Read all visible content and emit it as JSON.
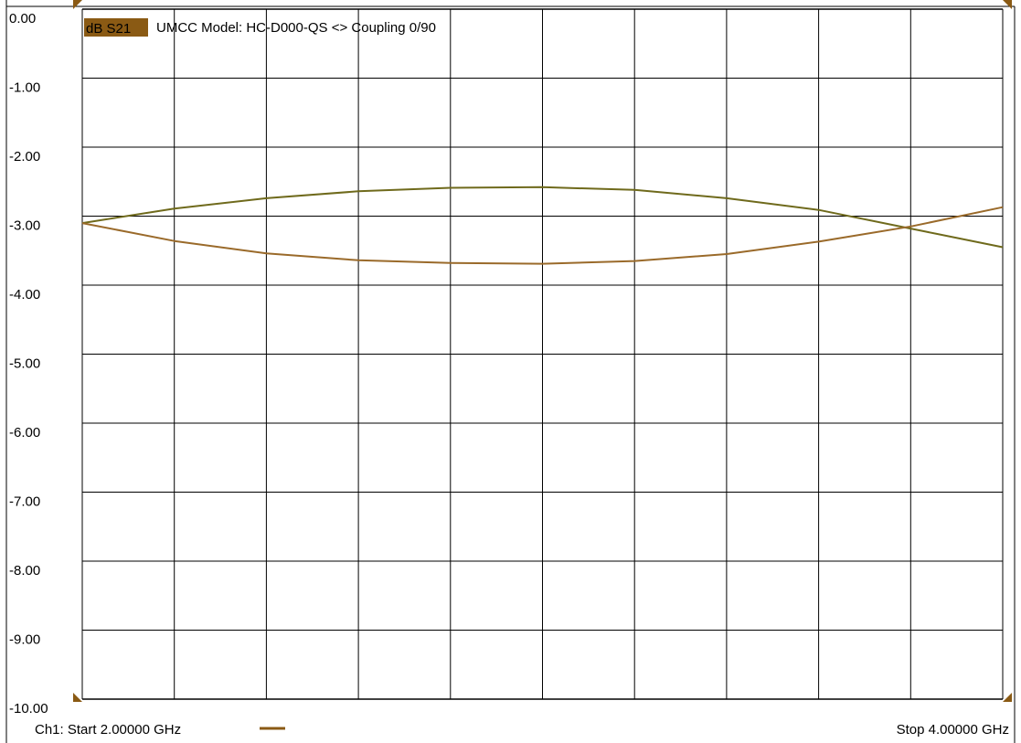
{
  "header": {
    "trace_label": "dB S21",
    "title": "UMCC Model: HC-D000-QS <> Coupling  0/90"
  },
  "footer": {
    "start_label": "Ch1: Start  2.00000 GHz",
    "stop_label": "Stop  4.00000 GHz"
  },
  "colors": {
    "background": "#ffffff",
    "grid": "#000000",
    "trace_label_bg": "#8a5a14",
    "series_1": "#6f6a1c",
    "series_2": "#9a6a2a",
    "marker": "#8a5a14"
  },
  "chart_data": {
    "type": "line",
    "x_unit": "GHz",
    "x_range": [
      2.0,
      4.0
    ],
    "x_divisions": 10,
    "ylim": [
      -10.0,
      0.0
    ],
    "y_ticks": [
      "0.00",
      "-1.00",
      "-2.00",
      "-3.00",
      "-4.00",
      "-5.00",
      "-6.00",
      "-7.00",
      "-8.00",
      "-9.00",
      "-10.00"
    ],
    "grid": true,
    "series": [
      {
        "color": "#6f6a1c",
        "x": [
          2.0,
          2.2,
          2.4,
          2.6,
          2.8,
          3.0,
          3.2,
          3.4,
          3.6,
          3.8,
          4.0
        ],
        "y": [
          -3.1,
          -2.89,
          -2.74,
          -2.64,
          -2.59,
          -2.58,
          -2.62,
          -2.74,
          -2.91,
          -3.18,
          -3.45
        ]
      },
      {
        "color": "#9a6a2a",
        "x": [
          2.0,
          2.2,
          2.4,
          2.6,
          2.8,
          3.0,
          3.2,
          3.4,
          3.6,
          3.8,
          4.0
        ],
        "y": [
          -3.1,
          -3.36,
          -3.54,
          -3.64,
          -3.68,
          -3.69,
          -3.65,
          -3.55,
          -3.37,
          -3.15,
          -2.87
        ]
      }
    ]
  }
}
